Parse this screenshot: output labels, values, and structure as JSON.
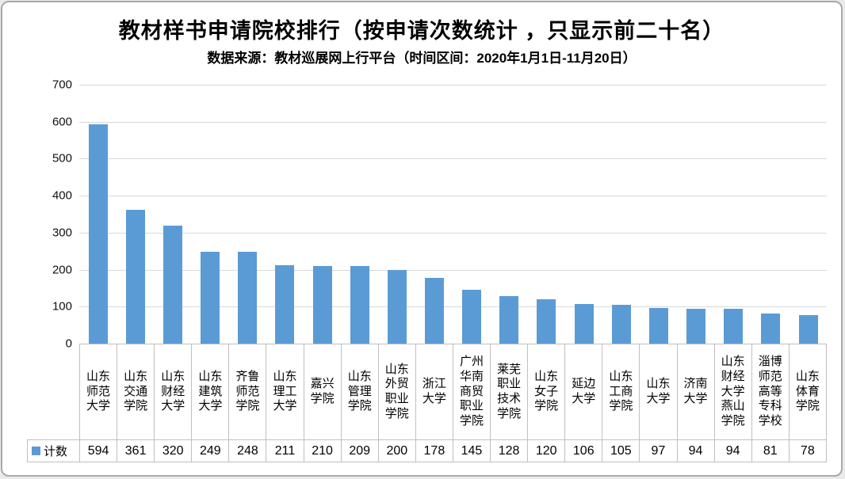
{
  "header": {
    "title": "教材样书申请院校排行（按申请次数统计 ，只显示前二十名）",
    "subtitle": "数据来源：教材巡展网上行平台（时间区间：2020年1月1日-11月20日）"
  },
  "legend": {
    "series_label": "计数",
    "marker_color": "#5B9BD5"
  },
  "colors": {
    "bar": "#5B9BD5",
    "gridline": "#D9D9D9",
    "table_border": "#BFBFBF",
    "frame_border": "#A9A9A9",
    "text": "#000000"
  },
  "chart_data": {
    "type": "bar",
    "title": "教材样书申请院校排行（按申请次数统计 ，只显示前二十名）",
    "subtitle": "数据来源：教材巡展网上行平台（时间区间：2020年1月1日-11月20日）",
    "xlabel": "",
    "ylabel": "",
    "ylim": [
      0,
      700
    ],
    "yticks": [
      0,
      100,
      200,
      300,
      400,
      500,
      600,
      700
    ],
    "grid": true,
    "legend_position": "bottom-left",
    "data_table_shown": true,
    "bar_color": "#5B9BD5",
    "categories": [
      "山东师范大学",
      "山东交通学院",
      "山东财经大学",
      "山东建筑大学",
      "齐鲁师范学院",
      "山东理工大学",
      "嘉兴学院",
      "山东管理学院",
      "山东外贸职业学院",
      "浙江大学",
      "广州华南商贸职业学院",
      "莱芜职业技术学院",
      "山东女子学院",
      "延边大学",
      "山东工商学院",
      "山东大学",
      "济南大学",
      "山东财经大学燕山学院",
      "淄博师范高等专科学校",
      "山东体育学院"
    ],
    "series": [
      {
        "name": "计数",
        "values": [
          594,
          361,
          320,
          249,
          248,
          211,
          210,
          209,
          200,
          178,
          145,
          128,
          120,
          106,
          105,
          97,
          94,
          94,
          81,
          78
        ]
      }
    ]
  }
}
